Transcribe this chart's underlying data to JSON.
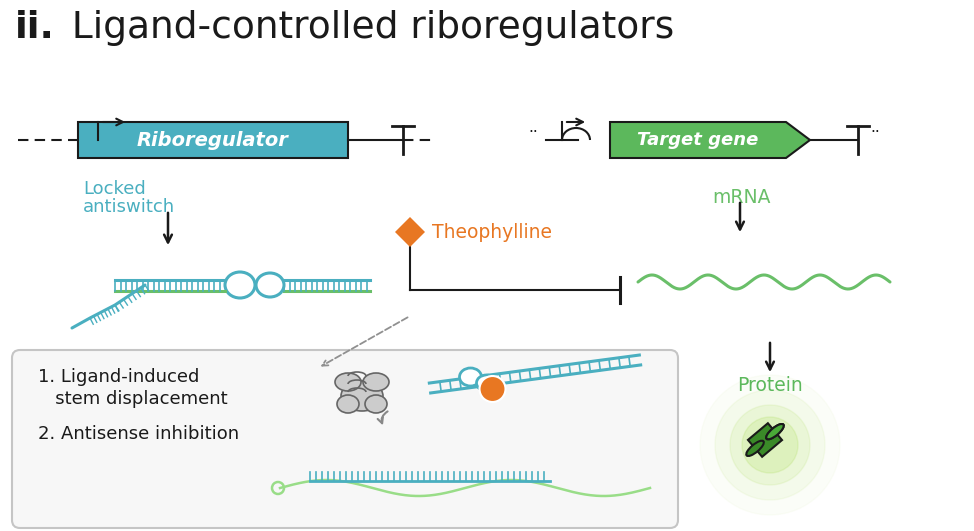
{
  "bg_color": "#ffffff",
  "riboregulator_color": "#4aafc0",
  "target_gene_color": "#5cb85c",
  "antiswitch_color": "#4aafc0",
  "mrna_color": "#6abf69",
  "theophylline_color": "#e87722",
  "arrow_color": "#1a1a1a",
  "gray_color": "#aaaaaa",
  "title_bold": "ii.",
  "title_rest": " Ligand-controlled riboregulators",
  "label_locked_1": "Locked",
  "label_locked_2": "antiswitch",
  "label_theophylline": "Theophylline",
  "label_mrna": "mRNA",
  "label_protein": "Protein",
  "box_text1": "1. Ligand-induced",
  "box_text2": "   stem displacement",
  "box_text3": "2. Antisense inhibition"
}
